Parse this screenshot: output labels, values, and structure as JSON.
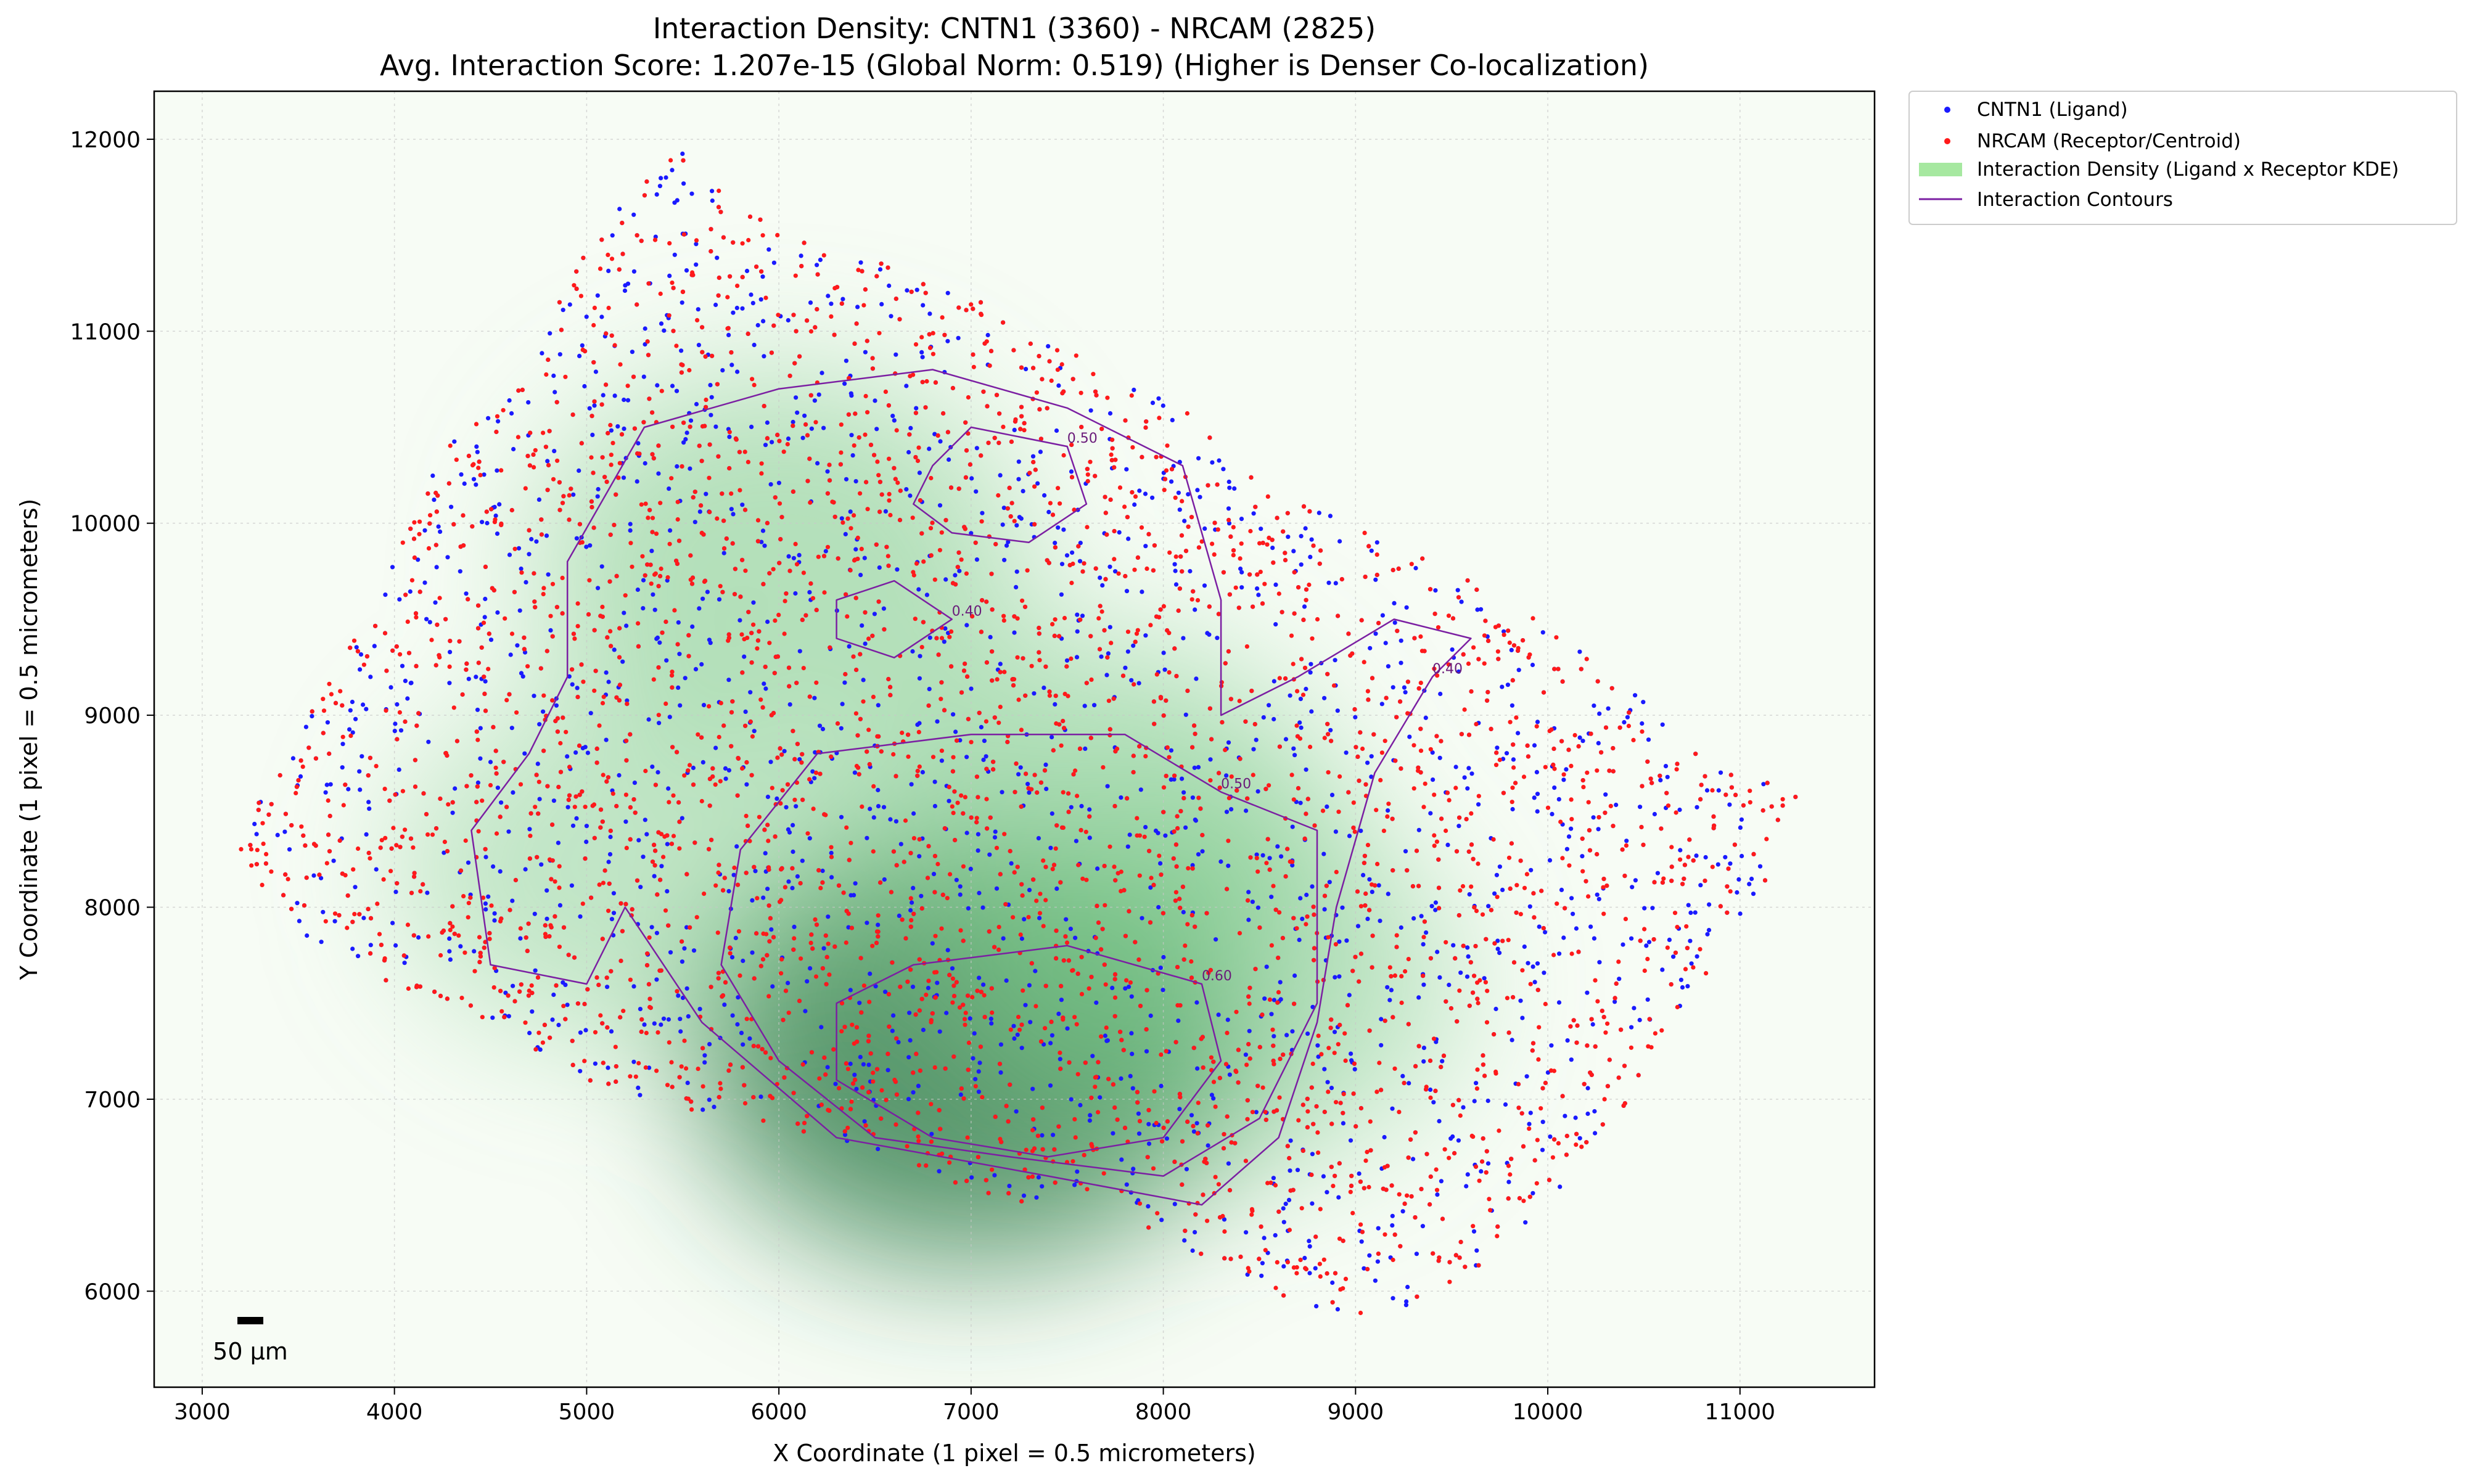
{
  "chart_data": {
    "type": "scatter",
    "title": "Interaction Density: CNTN1 (3360) - NRCAM (2825)",
    "subtitle": "Avg. Interaction Score: 1.207e-15 (Global Norm: 0.519) (Higher is Denser Co-localization)",
    "xlabel": "X Coordinate (1 pixel = 0.5 micrometers)",
    "ylabel": "Y Coordinate (1 pixel = 0.5 micrometers)",
    "xlim": [
      2750,
      11700
    ],
    "ylim": [
      5500,
      12250
    ],
    "xticks": [
      "3000",
      "4000",
      "5000",
      "6000",
      "7000",
      "8000",
      "9000",
      "10000",
      "11000"
    ],
    "yticks": [
      "6000",
      "7000",
      "8000",
      "9000",
      "10000",
      "11000",
      "12000"
    ],
    "grid": true,
    "legend_placement": "outside top-right",
    "legend": [
      {
        "label": "CNTN1 (Ligand)",
        "kind": "point",
        "color": "#1a1aff"
      },
      {
        "label": "NRCAM (Receptor/Centroid)",
        "kind": "point",
        "color": "#ff1a1a"
      },
      {
        "label": "Interaction Density (Ligand x Receptor KDE)",
        "kind": "patch",
        "color": "#a6e8a0"
      },
      {
        "label": "Interaction Contours",
        "kind": "line",
        "color": "#7b1fa2"
      }
    ],
    "series": [
      {
        "name": "CNTN1 (Ligand)",
        "count": 3360,
        "color": "#1a1aff"
      },
      {
        "name": "NRCAM (Receptor/Centroid)",
        "count": 2825,
        "color": "#ff1a1a"
      }
    ],
    "density_peaks": [
      {
        "x": 7000,
        "y": 7250,
        "weight": 1.0
      },
      {
        "x": 6000,
        "y": 9800,
        "weight": 0.55
      },
      {
        "x": 7600,
        "y": 8400,
        "weight": 0.6
      },
      {
        "x": 5200,
        "y": 8200,
        "weight": 0.35
      },
      {
        "x": 8300,
        "y": 7600,
        "weight": 0.45
      }
    ],
    "contours": [
      {
        "level": "0.40",
        "points": [
          [
            5200,
            8000
          ],
          [
            5600,
            7400
          ],
          [
            6300,
            6800
          ],
          [
            7400,
            6600
          ],
          [
            8200,
            6450
          ],
          [
            8600,
            6800
          ],
          [
            8800,
            7400
          ],
          [
            8900,
            8000
          ],
          [
            9100,
            8700
          ],
          [
            9400,
            9200
          ],
          [
            9600,
            9400
          ],
          [
            9200,
            9500
          ],
          [
            8700,
            9200
          ],
          [
            8300,
            9000
          ],
          [
            8300,
            9600
          ],
          [
            8100,
            10300
          ],
          [
            7500,
            10600
          ],
          [
            6800,
            10800
          ],
          [
            6000,
            10700
          ],
          [
            5300,
            10500
          ],
          [
            4900,
            9800
          ],
          [
            4900,
            9200
          ],
          [
            4700,
            8800
          ],
          [
            4400,
            8400
          ],
          [
            4500,
            7700
          ],
          [
            5000,
            7600
          ],
          [
            5200,
            8000
          ]
        ]
      },
      {
        "level": "0.50",
        "points": [
          [
            5800,
            8300
          ],
          [
            6200,
            8800
          ],
          [
            7000,
            8900
          ],
          [
            7800,
            8900
          ],
          [
            8300,
            8600
          ],
          [
            8800,
            8400
          ],
          [
            8800,
            7500
          ],
          [
            8500,
            6900
          ],
          [
            8000,
            6600
          ],
          [
            7200,
            6700
          ],
          [
            6500,
            6800
          ],
          [
            6000,
            7200
          ],
          [
            5700,
            7700
          ],
          [
            5800,
            8300
          ]
        ]
      },
      {
        "level": "0.60",
        "points": [
          [
            6300,
            7500
          ],
          [
            6700,
            7700
          ],
          [
            7500,
            7800
          ],
          [
            8200,
            7600
          ],
          [
            8300,
            7200
          ],
          [
            8000,
            6800
          ],
          [
            7400,
            6700
          ],
          [
            6800,
            6800
          ],
          [
            6300,
            7100
          ],
          [
            6300,
            7500
          ]
        ]
      },
      {
        "level": "0.50",
        "points": [
          [
            6800,
            10300
          ],
          [
            7000,
            10500
          ],
          [
            7500,
            10400
          ],
          [
            7600,
            10100
          ],
          [
            7300,
            9900
          ],
          [
            6900,
            9950
          ],
          [
            6700,
            10100
          ],
          [
            6800,
            10300
          ]
        ]
      },
      {
        "level": "0.40",
        "points": [
          [
            6300,
            9600
          ],
          [
            6600,
            9700
          ],
          [
            6900,
            9500
          ],
          [
            6600,
            9300
          ],
          [
            6300,
            9400
          ],
          [
            6300,
            9600
          ]
        ]
      }
    ],
    "scale_bar": {
      "label": "50 µm",
      "x": 3250,
      "y": 5850,
      "length": 100
    }
  }
}
